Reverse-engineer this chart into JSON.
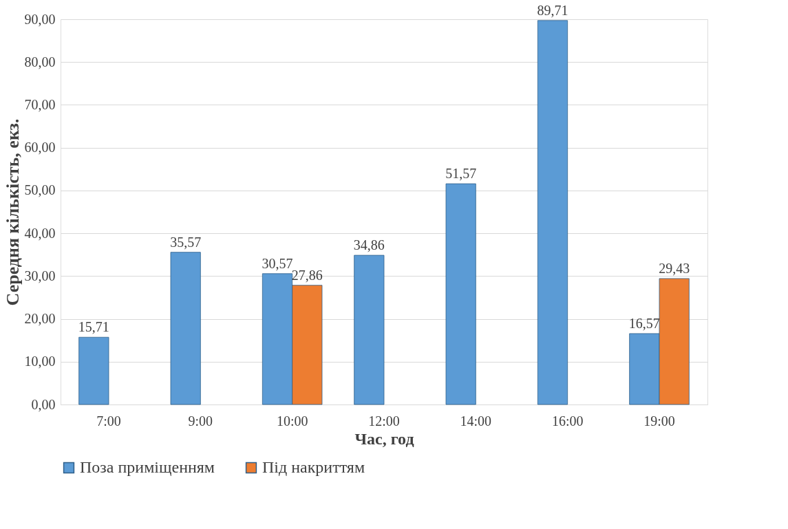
{
  "chart_data": {
    "type": "bar",
    "xlabel": "Час, год",
    "ylabel": "Середня кількість, екз.",
    "categories": [
      "7:00",
      "9:00",
      "10:00",
      "12:00",
      "14:00",
      "16:00",
      "19:00"
    ],
    "series": [
      {
        "name": "Поза приміщенням",
        "color": "#5b9bd5",
        "values": [
          15.71,
          35.57,
          30.57,
          34.86,
          51.57,
          89.71,
          16.57
        ],
        "value_labels": [
          "15,71",
          "35,57",
          "30,57",
          "34,86",
          "51,57",
          "89,71",
          "16,57"
        ]
      },
      {
        "name": "Під накриттям",
        "color": "#ed7d31",
        "values": [
          null,
          null,
          27.86,
          null,
          null,
          null,
          29.43
        ],
        "value_labels": [
          null,
          null,
          "27,86",
          null,
          null,
          null,
          "29,43"
        ]
      }
    ],
    "ylim": [
      0,
      90
    ],
    "yticks": [
      {
        "value": 0,
        "label": "0,00"
      },
      {
        "value": 10,
        "label": "10,00"
      },
      {
        "value": 20,
        "label": "20,00"
      },
      {
        "value": 30,
        "label": "30,00"
      },
      {
        "value": 40,
        "label": "40,00"
      },
      {
        "value": 50,
        "label": "50,00"
      },
      {
        "value": 60,
        "label": "60,00"
      },
      {
        "value": 70,
        "label": "70,00"
      },
      {
        "value": 80,
        "label": "80,00"
      },
      {
        "value": 90,
        "label": "90,00"
      }
    ],
    "grid": "y",
    "legend": "bottom"
  }
}
